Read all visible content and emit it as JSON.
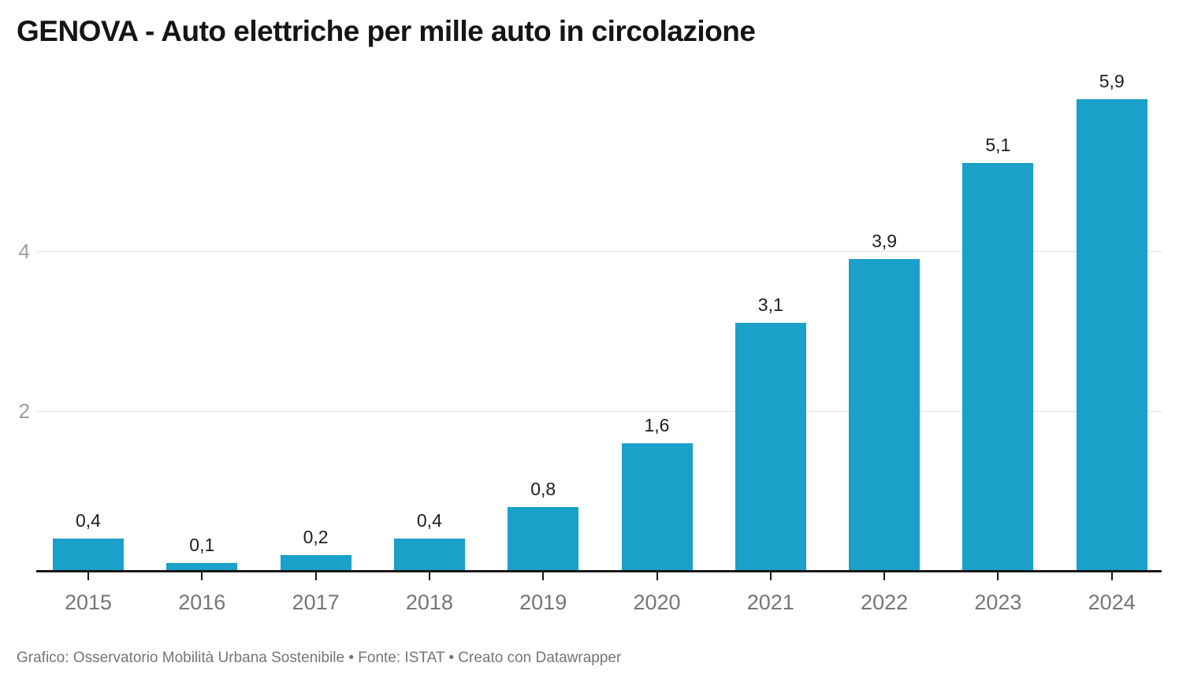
{
  "title": "GENOVA - Auto elettriche per mille auto in circolazione",
  "footer": {
    "text": "Grafico: Osservatorio Mobilità Urbana Sostenibile • Fonte: ISTAT • Creato con Datawrapper"
  },
  "colors": {
    "bar": "#1AA0C9",
    "gridline": "#e2e2e2",
    "axis_line": "#18181a",
    "y_tick_label": "#9e9e9e",
    "x_tick_label": "#767676",
    "value_label": "#1d1d1d",
    "title": "#151515",
    "footer": "#757575",
    "background": "#ffffff"
  },
  "chart_data": {
    "type": "bar",
    "title": "GENOVA - Auto elettriche per mille auto in circolazione",
    "categories": [
      "2015",
      "2016",
      "2017",
      "2018",
      "2019",
      "2020",
      "2021",
      "2022",
      "2023",
      "2024"
    ],
    "values": [
      0.4,
      0.1,
      0.2,
      0.4,
      0.8,
      1.6,
      3.1,
      3.9,
      5.1,
      5.9
    ],
    "value_labels": [
      "0,4",
      "0,1",
      "0,2",
      "0,4",
      "0,8",
      "1,6",
      "3,1",
      "3,9",
      "5,1",
      "5,9"
    ],
    "xlabel": "",
    "ylabel": "",
    "ylim": [
      0,
      6
    ],
    "yticks": [
      2,
      4
    ],
    "grid": "horizontal",
    "legend": "none",
    "decimal_separator": ","
  }
}
